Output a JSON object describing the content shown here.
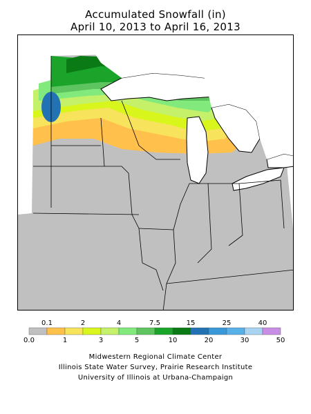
{
  "title_line1": "Accumulated Snowfall (in)",
  "title_line2": "April 10, 2013 to April 16, 2013",
  "legend": {
    "bins": [
      {
        "color": "#c0c0c0"
      },
      {
        "color": "#ffc04c"
      },
      {
        "color": "#f7e35c"
      },
      {
        "color": "#d8f51c"
      },
      {
        "color": "#c4f06a"
      },
      {
        "color": "#82ea7c"
      },
      {
        "color": "#5ec45f"
      },
      {
        "color": "#1aa52a"
      },
      {
        "color": "#0a7a14"
      },
      {
        "color": "#2373b4"
      },
      {
        "color": "#3a98d8"
      },
      {
        "color": "#58b0e8"
      },
      {
        "color": "#a8d4f4"
      },
      {
        "color": "#c88ee6"
      }
    ],
    "top_labels": [
      "0.1",
      "2",
      "4",
      "7.5",
      "15",
      "25",
      "40"
    ],
    "bottom_labels": [
      "0.0",
      "1",
      "3",
      "5",
      "10",
      "20",
      "30",
      "50"
    ]
  },
  "credits": [
    "Midwestern Regional Climate Center",
    "Illinois State Water Survey, Prairie Research Institute",
    "University of Illinois at Urbana-Champaign"
  ]
}
